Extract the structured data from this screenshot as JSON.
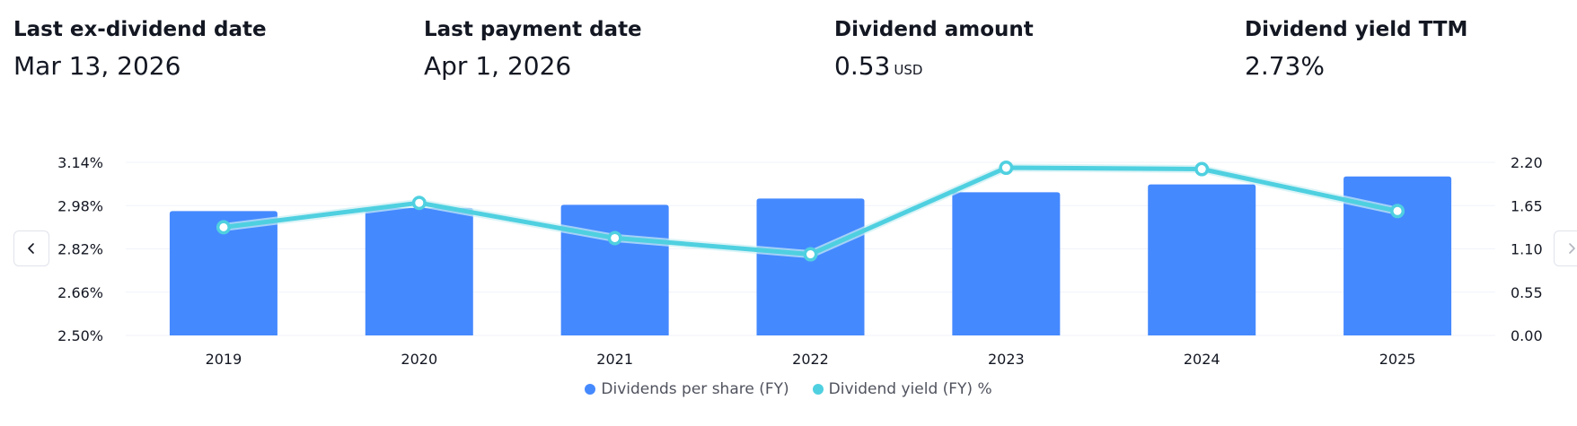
{
  "stats": [
    {
      "label": "Last ex-dividend date",
      "value": "Mar 13, 2026",
      "unit": ""
    },
    {
      "label": "Last payment date",
      "value": "Apr 1, 2026",
      "unit": ""
    },
    {
      "label": "Dividend amount",
      "value": "0.53",
      "unit": "USD"
    },
    {
      "label": "Dividend yield TTM",
      "value": "2.73%",
      "unit": ""
    }
  ],
  "nav": {
    "prev_icon": "chevron-left-icon",
    "next_icon": "chevron-right-icon"
  },
  "colors": {
    "bar": "#4589ff",
    "line": "#4fd0e0",
    "grid": "#f0f3fa",
    "text": "#131722"
  },
  "chart_data": {
    "type": "bar",
    "categories": [
      "2019",
      "2020",
      "2021",
      "2022",
      "2023",
      "2024",
      "2025"
    ],
    "series": [
      {
        "name": "Dividends per share (FY)",
        "type": "bar",
        "axis": "right",
        "values": [
          1.58,
          1.62,
          1.66,
          1.74,
          1.82,
          1.92,
          2.02
        ]
      },
      {
        "name": "Dividend yield (FY) %",
        "type": "line",
        "axis": "left",
        "values": [
          2.9,
          2.99,
          2.86,
          2.8,
          3.12,
          3.115,
          2.96
        ]
      }
    ],
    "left_axis": {
      "ticks": [
        "3.14%",
        "2.98%",
        "2.82%",
        "2.66%",
        "2.50%"
      ],
      "range": [
        2.5,
        3.14
      ]
    },
    "right_axis": {
      "ticks": [
        "2.20",
        "1.65",
        "1.10",
        "0.55",
        "0.00"
      ],
      "range": [
        0.0,
        2.2
      ]
    },
    "grid": true,
    "legend_position": "bottom-center"
  }
}
